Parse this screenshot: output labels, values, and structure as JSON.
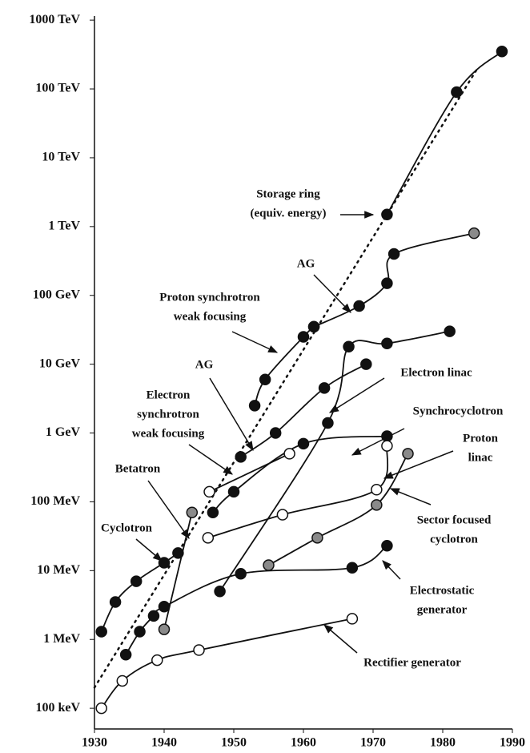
{
  "chart_data": {
    "type": "line",
    "log_y": true,
    "xlim": [
      1930,
      1990
    ],
    "xticks": [
      1930,
      1940,
      1950,
      1960,
      1970,
      1980,
      1990
    ],
    "ylim": [
      50000,
      1500000000000000
    ],
    "yticks": [
      {
        "value": 100000,
        "label": "100 keV"
      },
      {
        "value": 1000000,
        "label": "1 MeV"
      },
      {
        "value": 10000000,
        "label": "10 MeV"
      },
      {
        "value": 100000000,
        "label": "100 MeV"
      },
      {
        "value": 1000000000,
        "label": "1 GeV"
      },
      {
        "value": 10000000000,
        "label": "10 GeV"
      },
      {
        "value": 100000000000,
        "label": "100 GeV"
      },
      {
        "value": 1000000000000,
        "label": "1 TeV"
      },
      {
        "value": 10000000000000,
        "label": "10 TeV"
      },
      {
        "value": 100000000000000,
        "label": "100 TeV"
      },
      {
        "value": 1000000000000000,
        "label": "1000 TeV"
      }
    ],
    "series": [
      {
        "style": "dotted",
        "x": [
          1930,
          1985
        ],
        "values": [
          200000,
          200000000000000
        ]
      },
      {
        "marker": "open",
        "x": [
          1931,
          1934,
          1939,
          1945,
          1967
        ],
        "values": [
          100000,
          250000,
          500000,
          700000,
          2000000
        ]
      },
      {
        "marker": "filled",
        "x": [
          1931,
          1933,
          1936,
          1940,
          1942
        ],
        "values": [
          1300000,
          3500000,
          7000000,
          13000000,
          18000000
        ]
      },
      {
        "marker": "filled",
        "x": [
          1934.5,
          1936.5,
          1938.5,
          1940,
          1951,
          1967,
          1972
        ],
        "values": [
          600000,
          1300000,
          2200000,
          3000000,
          9000000,
          11000000,
          23000000
        ]
      },
      {
        "marker": "gray",
        "x": [
          1940,
          1944
        ],
        "values": [
          1400000,
          70000000
        ]
      },
      {
        "marker": "filled",
        "x": [
          1947,
          1950,
          1960,
          1972
        ],
        "values": [
          70000000,
          140000000,
          700000000,
          900000000
        ]
      },
      {
        "marker": "filled",
        "x": [
          1953,
          1954.5,
          1960,
          1961.5
        ],
        "values": [
          2500000000,
          6000000000,
          25000000000,
          35000000000
        ]
      },
      {
        "markers": [
          "filled",
          "filled",
          "filled",
          "filled",
          "gray"
        ],
        "x": [
          1961.5,
          1968,
          1972,
          1973,
          1984.5
        ],
        "values": [
          35000000000,
          70000000000,
          150000000000,
          400000000000,
          800000000000
        ]
      },
      {
        "marker": "filled",
        "x": [
          1972,
          1982,
          1988.5
        ],
        "values": [
          1500000000000,
          90000000000000,
          350000000000000
        ]
      },
      {
        "marker": "filled",
        "x": [
          1948,
          1963.5,
          1966.5,
          1972,
          1981
        ],
        "values": [
          5000000,
          1400000000,
          18000000000,
          20000000000,
          30000000000
        ]
      },
      {
        "marker": "filled",
        "x": [
          1951,
          1956,
          1963,
          1969
        ],
        "values": [
          450000000,
          1000000000,
          4500000000,
          10000000000
        ]
      },
      {
        "marker": "open",
        "x": [
          1946.5,
          1958
        ],
        "values": [
          140000000,
          500000000
        ]
      },
      {
        "marker": "open",
        "x": [
          1946.3,
          1957,
          1970.5,
          1972
        ],
        "values": [
          30000000,
          65000000,
          150000000,
          650000000
        ]
      },
      {
        "marker": "gray",
        "x": [
          1955,
          1962,
          1970.5,
          1975
        ],
        "values": [
          12000000,
          30000000,
          90000000,
          500000000
        ]
      }
    ],
    "annotations": [
      {
        "text": [
          "Storage ring",
          "(equiv. energy)"
        ]
      },
      {
        "text": [
          "AG"
        ]
      },
      {
        "text": [
          "Proton synchrotron",
          "weak focusing"
        ]
      },
      {
        "text": [
          "Electron linac"
        ]
      },
      {
        "text": [
          "AG"
        ]
      },
      {
        "text": [
          "Electron",
          "synchrotron",
          "weak focusing"
        ]
      },
      {
        "text": [
          "Synchrocyclotron"
        ]
      },
      {
        "text": [
          "Proton",
          "linac"
        ]
      },
      {
        "text": [
          "Betatron"
        ]
      },
      {
        "text": [
          "Sector focused",
          "cyclotron"
        ]
      },
      {
        "text": [
          "Cyclotron"
        ]
      },
      {
        "text": [
          "Electrostatic",
          "generator"
        ]
      },
      {
        "text": [
          "Rectifier  generator"
        ]
      }
    ]
  }
}
